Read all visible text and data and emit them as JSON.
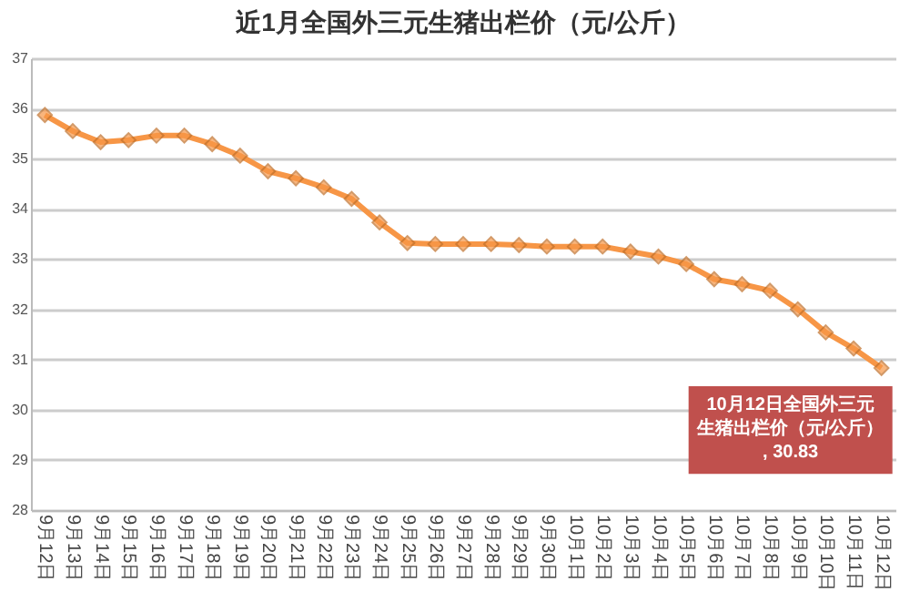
{
  "chart_data": {
    "type": "line",
    "title": "近1月全国外三元生猪出栏价（元/公斤）",
    "categories": [
      "9月12日",
      "9月13日",
      "9月14日",
      "9月15日",
      "9月16日",
      "9月17日",
      "9月18日",
      "9月19日",
      "9月20日",
      "9月21日",
      "9月22日",
      "9月23日",
      "9月24日",
      "9月25日",
      "9月26日",
      "9月27日",
      "9月28日",
      "9月29日",
      "9月30日",
      "10月1日",
      "10月2日",
      "10月3日",
      "10月4日",
      "10月5日",
      "10月6日",
      "10月7日",
      "10月8日",
      "10月9日",
      "10月10日",
      "10月11日",
      "10月12日"
    ],
    "series": [
      {
        "color": "#f79646",
        "values": [
          35.87,
          35.55,
          35.33,
          35.37,
          35.46,
          35.46,
          35.29,
          35.06,
          34.75,
          34.61,
          34.43,
          34.2,
          33.73,
          33.32,
          33.3,
          33.3,
          33.3,
          33.28,
          33.25,
          33.25,
          33.25,
          33.15,
          33.05,
          32.9,
          32.6,
          32.5,
          32.37,
          32.0,
          31.54,
          31.22,
          30.83
        ]
      }
    ],
    "ylim": [
      28,
      37
    ],
    "yticks": [
      28,
      29,
      30,
      31,
      32,
      33,
      34,
      35,
      36,
      37
    ],
    "grid": "y",
    "marker": "diamond",
    "line_style": "solid",
    "annotations": [
      {
        "text": "10月12日全国外三元生猪出栏价（元/公斤）, 30.83",
        "x": "10月12日",
        "y": 30.83
      }
    ]
  }
}
